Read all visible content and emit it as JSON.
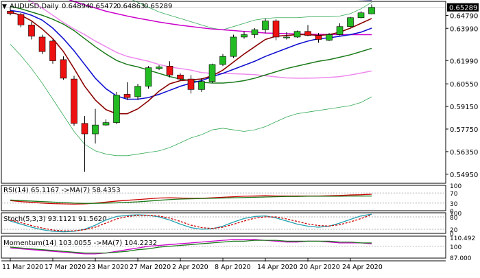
{
  "chart_data": [
    {
      "type": "candlestick",
      "header": {
        "symbol": "AUDUSD,Daily",
        "open": "0.64894",
        "high": "0.65472",
        "low": "0.64863",
        "close": "0.65289"
      },
      "current_price_label": "0.65289",
      "ylim": [
        0.5439,
        0.6566
      ],
      "y_ticks": [
        "0.64790",
        "0.63990",
        "0.61990",
        "0.60550",
        "0.59150",
        "0.57750",
        "0.56350",
        "0.54950"
      ],
      "y_tick_values": [
        0.6479,
        0.6399,
        0.6199,
        0.6055,
        0.5915,
        0.5775,
        0.5635,
        0.5495
      ],
      "x_tick_labels": [
        "11 Mar 2020",
        "17 Mar 2020",
        "23 Mar 2020",
        "27 Mar 2020",
        "2 Apr 2020",
        "8 Apr 2020",
        "14 Apr 2020",
        "20 Apr 2020",
        "24 Apr 2020"
      ],
      "x_tick_index": [
        0,
        4,
        8,
        12,
        16,
        20,
        24,
        28,
        32
      ],
      "colors": {
        "bull": "#22bb22",
        "bear": "#ee1111",
        "ma_fast": "#8b0000",
        "ma_mid": "#1010d0",
        "ma_slow": "#1a7a1a",
        "ma_long": "#ee88ee",
        "ma_magenta": "#cc00cc",
        "ma_navy": "#000080",
        "bollinger": "#33aa55"
      },
      "ohlc": [
        [
          0.6505,
          0.6529,
          0.648,
          0.649
        ],
        [
          0.6485,
          0.6495,
          0.6405,
          0.642
        ],
        [
          0.642,
          0.644,
          0.633,
          0.635
        ],
        [
          0.6345,
          0.636,
          0.624,
          0.6255
        ],
        [
          0.632,
          0.633,
          0.618,
          0.6198
        ],
        [
          0.6205,
          0.6225,
          0.608,
          0.609
        ],
        [
          0.6085,
          0.6105,
          0.5795,
          0.581
        ],
        [
          0.581,
          0.5855,
          0.551,
          0.5745
        ],
        [
          0.5745,
          0.59,
          0.5685,
          0.58
        ],
        [
          0.58,
          0.5835,
          0.5795,
          0.5815
        ],
        [
          0.5815,
          0.6005,
          0.5805,
          0.5985
        ],
        [
          0.599,
          0.6065,
          0.5955,
          0.597
        ],
        [
          0.5975,
          0.6055,
          0.5955,
          0.604
        ],
        [
          0.604,
          0.6165,
          0.6025,
          0.6155
        ],
        [
          0.615,
          0.617,
          0.614,
          0.616
        ],
        [
          0.6165,
          0.6195,
          0.6095,
          0.611
        ],
        [
          0.611,
          0.612,
          0.6075,
          0.6085
        ],
        [
          0.6085,
          0.611,
          0.5995,
          0.602
        ],
        [
          0.602,
          0.609,
          0.6005,
          0.607
        ],
        [
          0.607,
          0.618,
          0.606,
          0.6175
        ],
        [
          0.6175,
          0.624,
          0.6165,
          0.6225
        ],
        [
          0.6225,
          0.636,
          0.6215,
          0.6345
        ],
        [
          0.6345,
          0.638,
          0.6335,
          0.636
        ],
        [
          0.636,
          0.64,
          0.634,
          0.639
        ],
        [
          0.639,
          0.646,
          0.637,
          0.6445
        ],
        [
          0.6445,
          0.6455,
          0.6325,
          0.6345
        ],
        [
          0.634,
          0.6375,
          0.633,
          0.6345
        ],
        [
          0.6345,
          0.6385,
          0.634,
          0.638
        ],
        [
          0.638,
          0.642,
          0.635,
          0.6355
        ],
        [
          0.6355,
          0.637,
          0.631,
          0.633
        ],
        [
          0.6325,
          0.637,
          0.632,
          0.636
        ],
        [
          0.636,
          0.643,
          0.6355,
          0.641
        ],
        [
          0.641,
          0.647,
          0.6405,
          0.6465
        ],
        [
          0.6465,
          0.6505,
          0.646,
          0.6495
        ],
        [
          0.6489,
          0.6547,
          0.6486,
          0.6529
        ]
      ],
      "moving_averages": {
        "ma_fast": [
          0.65,
          0.648,
          0.6445,
          0.6395,
          0.6335,
          0.6255,
          0.615,
          0.604,
          0.5955,
          0.5895,
          0.587,
          0.587,
          0.59,
          0.595,
          0.601,
          0.6055,
          0.6075,
          0.608,
          0.6085,
          0.6105,
          0.614,
          0.619,
          0.624,
          0.6285,
          0.633,
          0.635,
          0.6355,
          0.636,
          0.636,
          0.6355,
          0.636,
          0.6375,
          0.64,
          0.643,
          0.646
        ],
        "ma_mid": [
          0.651,
          0.65,
          0.648,
          0.645,
          0.64,
          0.6335,
          0.626,
          0.6175,
          0.609,
          0.6025,
          0.598,
          0.596,
          0.596,
          0.597,
          0.599,
          0.6015,
          0.604,
          0.606,
          0.6075,
          0.61,
          0.612,
          0.6145,
          0.617,
          0.6195,
          0.6225,
          0.625,
          0.6275,
          0.63,
          0.632,
          0.6335,
          0.634,
          0.635,
          0.636,
          0.6375,
          0.64
        ],
        "ma_slow": [
          0.6535,
          0.652,
          0.65,
          0.648,
          0.6455,
          0.6425,
          0.6385,
          0.6335,
          0.6285,
          0.624,
          0.62,
          0.6175,
          0.616,
          0.614,
          0.612,
          0.61,
          0.6085,
          0.6075,
          0.6065,
          0.606,
          0.606,
          0.6065,
          0.6075,
          0.609,
          0.611,
          0.613,
          0.615,
          0.6165,
          0.618,
          0.6195,
          0.6205,
          0.622,
          0.6235,
          0.6255,
          0.6275
        ],
        "ma_long": [
          0.663,
          0.66,
          0.6565,
          0.6525,
          0.648,
          0.6435,
          0.6395,
          0.636,
          0.632,
          0.6285,
          0.625,
          0.6225,
          0.621,
          0.6195,
          0.6175,
          0.616,
          0.615,
          0.614,
          0.6125,
          0.612,
          0.612,
          0.6118,
          0.6115,
          0.6112,
          0.6105,
          0.6098,
          0.6092,
          0.609,
          0.609,
          0.6092,
          0.6095,
          0.61,
          0.611,
          0.6122,
          0.6135
        ],
        "ma_magenta": [
          0.667,
          0.666,
          0.6645,
          0.663,
          0.6615,
          0.659,
          0.6565,
          0.6545,
          0.6525,
          0.6505,
          0.649,
          0.6475,
          0.6462,
          0.645,
          0.6438,
          0.6428,
          0.6418,
          0.641,
          0.6402,
          0.6395,
          0.639,
          0.6385,
          0.638,
          0.6375,
          0.637,
          0.6368,
          0.6366,
          0.6364,
          0.6363,
          0.6362,
          0.6361,
          0.636,
          0.636,
          0.636,
          0.636
        ],
        "ma_navy": [
          0.669,
          0.6685,
          0.668,
          0.6675,
          0.667,
          0.6666,
          0.6662,
          0.6658,
          0.6654,
          0.665,
          0.6646,
          0.6642,
          0.6638,
          0.6634,
          0.663,
          0.6626,
          0.6622,
          0.6618,
          0.6614,
          0.661,
          0.6607,
          0.6604,
          0.6601,
          0.6598,
          0.6595,
          0.6593,
          0.6591,
          0.6589,
          0.6587,
          0.6585,
          0.6583,
          0.6581,
          0.6579,
          0.6577,
          0.6575
        ],
        "bb_upper": [
          0.675,
          0.674,
          0.672,
          0.67,
          0.669,
          0.668,
          0.667,
          0.666,
          0.665,
          0.664,
          0.662,
          0.659,
          0.656,
          0.653,
          0.65,
          0.648,
          0.646,
          0.644,
          0.642,
          0.64,
          0.639,
          0.641,
          0.643,
          0.645,
          0.646,
          0.6465,
          0.6465,
          0.6465,
          0.647,
          0.647,
          0.647,
          0.6475,
          0.649,
          0.652,
          0.656
        ],
        "bb_lower": [
          0.63,
          0.623,
          0.615,
          0.606,
          0.596,
          0.586,
          0.576,
          0.568,
          0.564,
          0.562,
          0.561,
          0.561,
          0.562,
          0.563,
          0.564,
          0.566,
          0.569,
          0.572,
          0.574,
          0.577,
          0.578,
          0.577,
          0.576,
          0.577,
          0.579,
          0.582,
          0.585,
          0.587,
          0.588,
          0.589,
          0.59,
          0.591,
          0.592,
          0.594,
          0.5975
        ]
      }
    },
    {
      "type": "line",
      "label": "RSI(14) 65.1167 ->MA(7) 58.4353",
      "ylim": [
        0,
        100
      ],
      "y_ticks": [
        "100",
        "70",
        "30",
        "0"
      ],
      "y_tick_values": [
        100,
        70,
        30,
        0
      ],
      "levels": [
        70,
        30
      ],
      "series": [
        {
          "values": [
            40,
            36,
            33,
            30,
            28,
            27,
            26,
            27,
            30,
            34,
            38,
            41,
            44,
            47,
            50,
            51,
            50,
            49,
            49,
            51,
            53,
            55,
            57,
            58,
            59,
            58,
            58,
            58,
            58,
            58,
            59,
            60,
            62,
            63,
            65
          ]
        },
        {
          "values": [
            42,
            40,
            38,
            36,
            34,
            32,
            30,
            29,
            29,
            30,
            31,
            33,
            35,
            38,
            41,
            44,
            46,
            47,
            48,
            49,
            50,
            51,
            52,
            53,
            54,
            55,
            56,
            56,
            57,
            57,
            57,
            57,
            58,
            58,
            58
          ]
        }
      ]
    },
    {
      "type": "line",
      "label": "Stoch(5,3,3) 93.1121 91.5620",
      "ylim": [
        0,
        100
      ],
      "y_ticks": [
        "100",
        "80",
        "20",
        "0"
      ],
      "y_tick_values": [
        100,
        80,
        20,
        0
      ],
      "levels": [
        80,
        20
      ],
      "series": [
        {
          "values": [
            60,
            45,
            30,
            18,
            10,
            8,
            10,
            20,
            40,
            65,
            82,
            88,
            90,
            88,
            80,
            65,
            45,
            28,
            20,
            22,
            35,
            55,
            72,
            82,
            85,
            75,
            60,
            45,
            35,
            30,
            35,
            50,
            68,
            85,
            93
          ]
        },
        {
          "values": [
            65,
            52,
            38,
            26,
            16,
            12,
            12,
            18,
            30,
            50,
            70,
            82,
            87,
            88,
            84,
            74,
            58,
            40,
            28,
            24,
            30,
            44,
            60,
            74,
            80,
            80,
            70,
            58,
            46,
            38,
            36,
            42,
            56,
            72,
            91
          ]
        }
      ]
    },
    {
      "type": "line",
      "label": "Momentum(14) 103.0055 ->MA(7) 104.2232",
      "ylim": [
        86,
        112
      ],
      "y_ticks": [
        "110.492",
        "100",
        "87.000"
      ],
      "y_tick_values": [
        110.492,
        100,
        87.0
      ],
      "levels": [
        100
      ],
      "series": [
        {
          "values": [
            98,
            97,
            96,
            95,
            94,
            93,
            92,
            91,
            91,
            92,
            94,
            96,
            98,
            100,
            101,
            102,
            103,
            104,
            105,
            106,
            107,
            108,
            108,
            108,
            107,
            106,
            105,
            105,
            106,
            106,
            105,
            104,
            104,
            104,
            103
          ]
        },
        {
          "values": [
            99,
            98,
            97,
            96,
            95,
            94,
            93,
            92,
            92,
            92,
            93,
            94,
            96,
            97,
            99,
            100,
            101,
            102,
            103,
            104,
            105,
            106,
            106,
            107,
            107,
            107,
            106,
            106,
            106,
            106,
            106,
            105,
            105,
            104,
            104
          ]
        }
      ]
    }
  ]
}
